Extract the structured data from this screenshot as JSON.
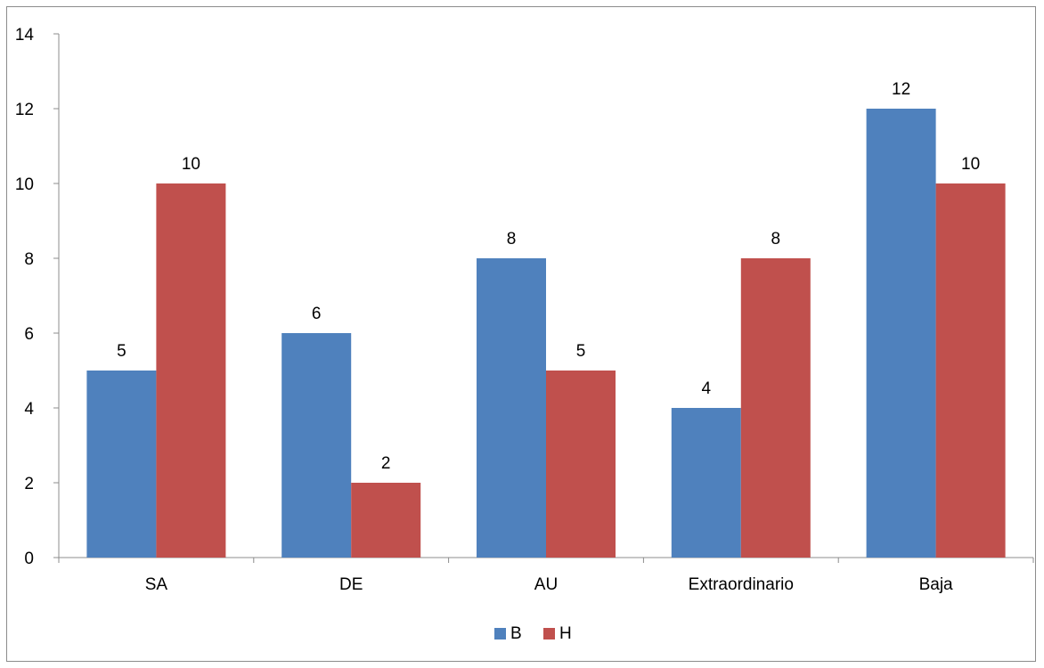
{
  "chart_data": {
    "type": "bar",
    "categories": [
      "SA",
      "DE",
      "AU",
      "Extraordinario",
      "Baja"
    ],
    "series": [
      {
        "name": "B",
        "values": [
          5,
          6,
          8,
          4,
          12
        ],
        "color": "#4F81BD"
      },
      {
        "name": "H",
        "values": [
          10,
          2,
          5,
          8,
          10
        ],
        "color": "#C0504D"
      }
    ],
    "ylim": [
      0,
      14
    ],
    "yticks": [
      0,
      2,
      4,
      6,
      8,
      10,
      12,
      14
    ],
    "title": "",
    "xlabel": "",
    "ylabel": "",
    "grid": false,
    "data_labels": true,
    "legend_position": "bottom"
  }
}
